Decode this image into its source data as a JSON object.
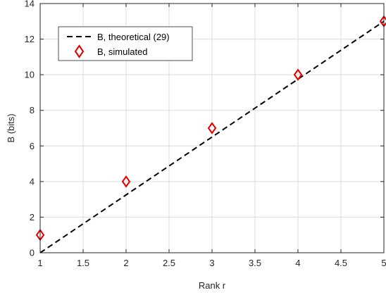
{
  "chart_data": {
    "type": "line",
    "xlabel": "Rank r",
    "ylabel": "B (bits)",
    "xlim": [
      1,
      5
    ],
    "ylim": [
      0,
      14
    ],
    "x_ticks": [
      1,
      1.5,
      2,
      2.5,
      3,
      3.5,
      4,
      4.5,
      5
    ],
    "x_tick_labels": [
      "1",
      "1.5",
      "2",
      "2.5",
      "3",
      "3.5",
      "4",
      "4.5",
      "5"
    ],
    "y_ticks": [
      0,
      2,
      4,
      6,
      8,
      10,
      12,
      14
    ],
    "y_tick_labels": [
      "0",
      "2",
      "4",
      "6",
      "8",
      "10",
      "12",
      "14"
    ],
    "grid": true,
    "legend_position": "top-left",
    "series": [
      {
        "name": "B, theoretical (29)",
        "style": "dashed-line",
        "color": "#000000",
        "x": [
          1,
          5
        ],
        "y": [
          0,
          13
        ]
      },
      {
        "name": "B, simulated",
        "style": "diamond-markers",
        "color": "#e00000",
        "x": [
          1,
          2,
          3,
          4,
          5
        ],
        "y": [
          1,
          4,
          7,
          10,
          13
        ]
      }
    ]
  }
}
